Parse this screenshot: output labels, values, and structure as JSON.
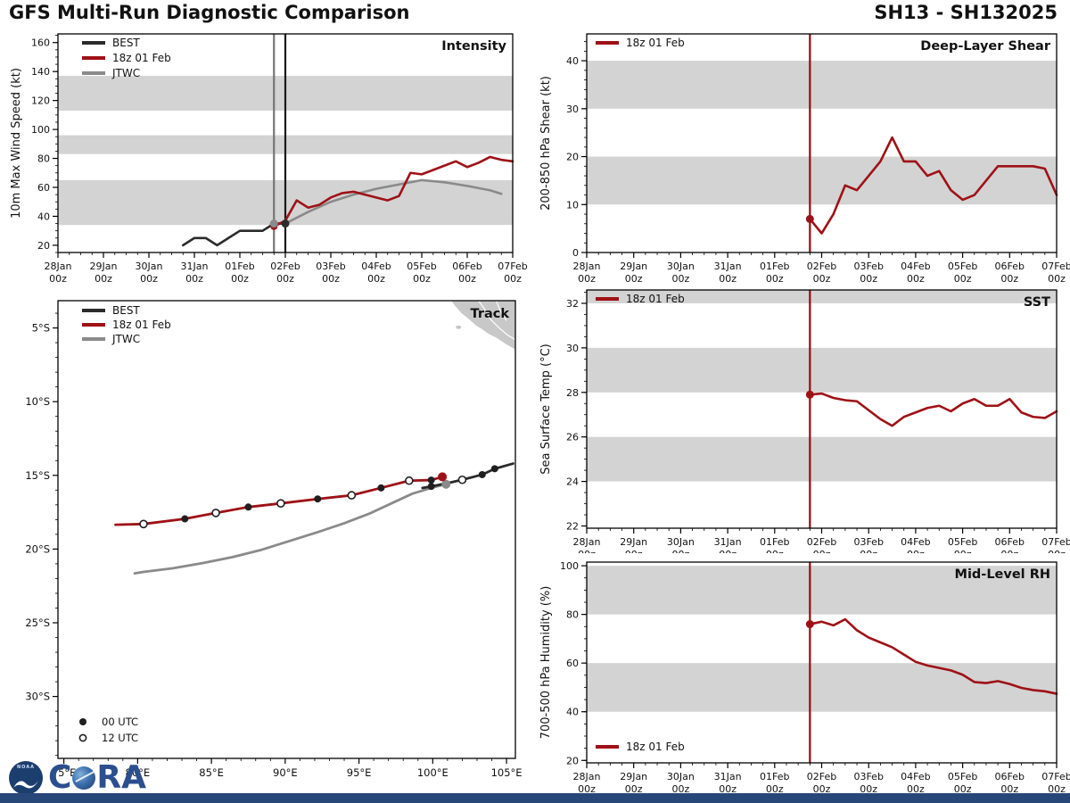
{
  "header": {
    "title": "GFS Multi-Run Diagnostic Comparison",
    "storm_id": "SH13 - SH132025"
  },
  "colors": {
    "best": "#2b2b2b",
    "run": "#9f1116",
    "jtwc": "#8a8a8a",
    "band": "#d3d3d3",
    "land": "#c8c8c8",
    "coast": "#ffffff",
    "axis": "#000000",
    "vline_black": "#1a1a1a",
    "vline_gray": "#757575",
    "vline_red": "#8f0e13",
    "marker_dark": "#1f1f1f",
    "marker_open_fill": "#ffffff",
    "bottom_bar": "#274779",
    "noaa_blue": "#1c3e6e",
    "cira_blue": "#2b4f8e"
  },
  "time_axis": {
    "min": 0,
    "max": 240,
    "major_step": 24,
    "minor_step": 6,
    "dates": [
      "28Jan",
      "29Jan",
      "30Jan",
      "31Jan",
      "01Feb",
      "02Feb",
      "03Feb",
      "04Feb",
      "05Feb",
      "06Feb",
      "07Feb"
    ],
    "hour": "00z"
  },
  "utc_legend": {
    "filled": "00 UTC",
    "open": "12 UTC"
  },
  "footer": {
    "noaa": "NOAA",
    "cira_c": "C",
    "cira_ra": "RA"
  },
  "chart_data": [
    {
      "id": "intensity",
      "type": "line",
      "title": "Intensity",
      "ylabel": "10m Max Wind Speed (kt)",
      "ylim": [
        15,
        166
      ],
      "yticks": [
        20,
        40,
        60,
        80,
        100,
        120,
        140,
        160
      ],
      "yminor": 5,
      "bands": [
        [
          34,
          65
        ],
        [
          83,
          96
        ],
        [
          113,
          137
        ]
      ],
      "vlines": [
        {
          "t": 114,
          "color_key": "vline_gray"
        },
        {
          "t": 120,
          "color_key": "vline_black"
        }
      ],
      "legend": {
        "pos": "top-left",
        "items": [
          {
            "label": "BEST",
            "color_key": "best"
          },
          {
            "label": "18z 01 Feb",
            "color_key": "run"
          },
          {
            "label": "JTWC",
            "color_key": "jtwc"
          }
        ]
      },
      "series": [
        {
          "name": "BEST",
          "color_key": "best",
          "t": [
            66,
            72,
            78,
            84,
            90,
            96,
            102,
            108,
            114,
            120
          ],
          "v": [
            20,
            25,
            25,
            20,
            25,
            30,
            30,
            30,
            35,
            35
          ]
        },
        {
          "name": "JTWC",
          "color_key": "jtwc",
          "t": [
            120,
            132,
            144,
            156,
            168,
            180,
            192,
            204,
            216,
            228,
            234
          ],
          "v": [
            35,
            43,
            50,
            55,
            59,
            62,
            65,
            63.5,
            61,
            58,
            55.5
          ]
        },
        {
          "name": "18z 01 Feb",
          "color_key": "run",
          "t": [
            114,
            120,
            126,
            132,
            138,
            144,
            150,
            156,
            162,
            168,
            174,
            180,
            186,
            192,
            198,
            204,
            210,
            216,
            222,
            228,
            234,
            240
          ],
          "v": [
            33,
            37,
            51,
            46,
            48,
            53,
            56,
            57,
            55,
            53,
            51,
            54,
            70,
            69,
            72,
            75,
            78,
            74,
            77,
            81,
            79,
            78
          ]
        }
      ],
      "points": [
        {
          "t": 114,
          "v": 33,
          "color_key": "run",
          "r": 4
        },
        {
          "t": 114,
          "v": 35,
          "color_key": "jtwc",
          "r": 4.5
        },
        {
          "t": 120,
          "v": 35,
          "color_key": "best",
          "r": 4.5
        }
      ]
    },
    {
      "id": "shear",
      "type": "line",
      "title": "Deep-Layer Shear",
      "ylabel": "200-850 hPa Shear (kt)",
      "ylim": [
        0,
        45.6
      ],
      "yticks": [
        0,
        10,
        20,
        30,
        40
      ],
      "yminor": 2,
      "bands": [
        [
          10,
          20
        ],
        [
          30,
          40
        ]
      ],
      "vlines": [
        {
          "t": 114,
          "color_key": "vline_red"
        }
      ],
      "legend": {
        "pos": "top-left",
        "items": [
          {
            "label": "18z 01 Feb",
            "color_key": "run"
          }
        ]
      },
      "series": [
        {
          "name": "18z 01 Feb",
          "color_key": "run",
          "t": [
            114,
            120,
            126,
            132,
            138,
            144,
            150,
            156,
            162,
            168,
            174,
            180,
            186,
            192,
            198,
            204,
            210,
            216,
            222,
            228,
            234,
            240
          ],
          "v": [
            7,
            4,
            8,
            14,
            13,
            16,
            19,
            24,
            19,
            19,
            16,
            17,
            13,
            11,
            12,
            15,
            18,
            18,
            18,
            18,
            17.5,
            12
          ]
        }
      ],
      "points": [
        {
          "t": 114,
          "v": 7,
          "color_key": "run",
          "r": 4.5
        }
      ]
    },
    {
      "id": "sst",
      "type": "line",
      "title": "SST",
      "ylabel": "Sea Surface Temp (°C)",
      "ylim": [
        21.9,
        32.6
      ],
      "yticks": [
        22,
        24,
        26,
        28,
        30,
        32
      ],
      "yminor": 0.5,
      "bands": [
        [
          24,
          26
        ],
        [
          28,
          30
        ],
        [
          32,
          32.6
        ]
      ],
      "vlines": [
        {
          "t": 114,
          "color_key": "vline_red"
        }
      ],
      "legend": {
        "pos": "top-left",
        "items": [
          {
            "label": "18z 01 Feb",
            "color_key": "run"
          }
        ]
      },
      "series": [
        {
          "name": "18z 01 Feb",
          "color_key": "run",
          "t": [
            114,
            120,
            126,
            132,
            138,
            144,
            150,
            156,
            162,
            168,
            174,
            180,
            186,
            192,
            198,
            204,
            210,
            216,
            222,
            228,
            234,
            240
          ],
          "v": [
            27.9,
            27.95,
            27.75,
            27.65,
            27.6,
            27.2,
            26.8,
            26.5,
            26.9,
            27.1,
            27.3,
            27.4,
            27.15,
            27.5,
            27.7,
            27.4,
            27.4,
            27.7,
            27.1,
            26.9,
            26.85,
            27.15
          ]
        }
      ],
      "points": [
        {
          "t": 114,
          "v": 27.9,
          "color_key": "run",
          "r": 4.5
        }
      ]
    },
    {
      "id": "rh",
      "type": "line",
      "title": "Mid-Level RH",
      "ylabel": "700-500 hPa Humidity (%)",
      "ylim": [
        19,
        101.5
      ],
      "yticks": [
        20,
        40,
        60,
        80,
        100
      ],
      "yminor": 5,
      "bands": [
        [
          40,
          60
        ],
        [
          80,
          100
        ]
      ],
      "vlines": [
        {
          "t": 114,
          "color_key": "vline_red"
        }
      ],
      "legend": {
        "pos": "bottom-left",
        "items": [
          {
            "label": "18z 01 Feb",
            "color_key": "run"
          }
        ]
      },
      "series": [
        {
          "name": "18z 01 Feb",
          "color_key": "run",
          "t": [
            114,
            120,
            126,
            132,
            138,
            144,
            150,
            156,
            162,
            168,
            174,
            180,
            186,
            192,
            198,
            204,
            210,
            216,
            222,
            228,
            234,
            240
          ],
          "v": [
            76,
            77,
            75.5,
            78,
            73.5,
            70.5,
            68.5,
            66.5,
            63.5,
            60.5,
            59,
            58,
            57,
            55.2,
            52.2,
            51.8,
            52.6,
            51.4,
            49.8,
            48.9,
            48.4,
            47.4
          ]
        }
      ],
      "points": [
        {
          "t": 114,
          "v": 76,
          "color_key": "run",
          "r": 4.5
        }
      ]
    },
    {
      "id": "track",
      "type": "track",
      "title": "Track",
      "lon_lim": [
        74.6,
        105.6
      ],
      "lat_lim": [
        -3.15,
        -34.2
      ],
      "lon_ticks": [
        75,
        80,
        85,
        90,
        95,
        100,
        105
      ],
      "lon_tick_labels": [
        "75°E",
        "80°E",
        "85°E",
        "90°E",
        "95°E",
        "100°E",
        "105°E"
      ],
      "lat_ticks": [
        -5,
        -10,
        -15,
        -20,
        -25,
        -30
      ],
      "lat_tick_labels": [
        "5°S",
        "10°S",
        "15°S",
        "20°S",
        "25°S",
        "30°S"
      ],
      "legend": {
        "pos": "top-left",
        "items": [
          {
            "label": "BEST",
            "color_key": "best"
          },
          {
            "label": "18z 01 Feb",
            "color_key": "run"
          },
          {
            "label": "JTWC",
            "color_key": "jtwc"
          }
        ]
      },
      "land": {
        "polygon": [
          [
            101.2,
            -3.15
          ],
          [
            105.6,
            -3.15
          ],
          [
            105.6,
            -6.5
          ],
          [
            104.9,
            -6.1
          ],
          [
            104.3,
            -5.7
          ],
          [
            103.8,
            -5.45
          ],
          [
            103.3,
            -5.1
          ],
          [
            102.9,
            -4.85
          ],
          [
            102.4,
            -4.4
          ],
          [
            101.9,
            -4.0
          ],
          [
            101.55,
            -3.6
          ]
        ],
        "borders": [
          [
            [
              103.1,
              -3.15
            ],
            [
              103.5,
              -3.7
            ],
            [
              103.9,
              -4.4
            ],
            [
              104.5,
              -5.0
            ],
            [
              105.1,
              -5.5
            ],
            [
              105.6,
              -5.8
            ]
          ],
          [
            [
              104.3,
              -3.15
            ],
            [
              104.6,
              -3.9
            ],
            [
              105.0,
              -4.5
            ]
          ]
        ],
        "island": {
          "lon": 101.75,
          "lat": -4.95
        }
      },
      "tracks": [
        {
          "name": "JTWC",
          "color_key": "jtwc",
          "lon": [
            100.9,
            99.9,
            98.6,
            97.2,
            95.7,
            94.0,
            92.2,
            90.3,
            88.4,
            86.4,
            84.4,
            82.4,
            80.4,
            79.8
          ],
          "lat": [
            -15.6,
            -15.85,
            -16.25,
            -16.9,
            -17.6,
            -18.25,
            -18.85,
            -19.45,
            -20.05,
            -20.55,
            -20.95,
            -21.3,
            -21.55,
            -21.65
          ],
          "markers": [
            "init",
            "n",
            "n",
            "n",
            "n",
            "n",
            "n",
            "n",
            "n",
            "n",
            "n",
            "n",
            "n",
            "n"
          ]
        },
        {
          "name": "BEST",
          "color_key": "best",
          "lon": [
            105.45,
            104.2,
            103.35,
            102.0,
            100.9,
            99.9,
            99.3
          ],
          "lat": [
            -14.2,
            -14.55,
            -14.95,
            -15.3,
            -15.55,
            -15.75,
            -15.85
          ],
          "markers": [
            "n",
            "f",
            "f",
            "o",
            "n",
            "f",
            "n"
          ]
        },
        {
          "name": "18z 01 Feb",
          "color_key": "run",
          "lon": [
            100.65,
            99.9,
            98.4,
            96.5,
            94.5,
            92.2,
            89.7,
            87.5,
            85.3,
            83.2,
            80.4,
            78.5
          ],
          "lat": [
            -15.1,
            -15.32,
            -15.36,
            -15.85,
            -16.35,
            -16.6,
            -16.9,
            -17.15,
            -17.55,
            -17.95,
            -18.3,
            -18.35
          ],
          "markers": [
            "init",
            "f",
            "o",
            "f",
            "o",
            "f",
            "o",
            "f",
            "o",
            "f",
            "o",
            "n"
          ]
        }
      ]
    }
  ]
}
